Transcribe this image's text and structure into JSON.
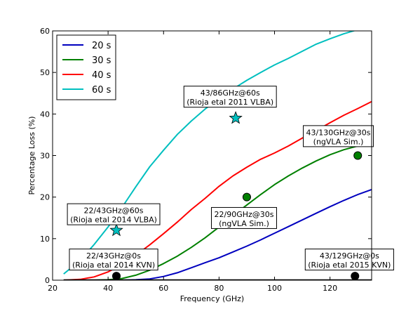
{
  "chart_data": {
    "type": "line",
    "title": "",
    "xlabel": "Frequency (GHz)",
    "ylabel": "Percentage Loss (%)",
    "xlim": [
      20,
      135
    ],
    "ylim": [
      0,
      60
    ],
    "xticks": [
      "20",
      "40",
      "60",
      "80",
      "100",
      "120"
    ],
    "yticks": [
      "0",
      "10",
      "20",
      "30",
      "40",
      "50",
      "60"
    ],
    "legend_position": "top-left",
    "grid": false,
    "series": [
      {
        "name": "20 s",
        "color": "#0000bf",
        "x": [
          24,
          35,
          45,
          50,
          55,
          60,
          65,
          70,
          75,
          80,
          85,
          90,
          95,
          100,
          105,
          110,
          115,
          120,
          125,
          130,
          135
        ],
        "y": [
          0,
          0,
          0,
          0.1,
          0.3,
          0.9,
          1.8,
          3.0,
          4.2,
          5.4,
          6.8,
          8.2,
          9.7,
          11.3,
          12.9,
          14.5,
          16.1,
          17.7,
          19.2,
          20.6,
          21.8
        ]
      },
      {
        "name": "30 s",
        "color": "#008000",
        "x": [
          24,
          35,
          40,
          45,
          50,
          55,
          60,
          65,
          70,
          75,
          80,
          85,
          90,
          95,
          100,
          105,
          110,
          115,
          120,
          125,
          130,
          135
        ],
        "y": [
          0,
          0,
          0.1,
          0.4,
          1.2,
          2.4,
          4.0,
          5.8,
          7.9,
          10.2,
          12.8,
          15.5,
          18.1,
          20.6,
          23.0,
          25.1,
          27.0,
          28.7,
          30.2,
          31.4,
          32.3,
          33.0
        ]
      },
      {
        "name": "40 s",
        "color": "#ff0000",
        "x": [
          24,
          30,
          35,
          40,
          45,
          50,
          55,
          60,
          65,
          70,
          75,
          80,
          85,
          90,
          95,
          100,
          105,
          110,
          115,
          120,
          125,
          130,
          135
        ],
        "y": [
          0,
          0.2,
          0.8,
          2.0,
          3.8,
          6.0,
          8.5,
          11.2,
          14.0,
          17.0,
          19.7,
          22.6,
          25.1,
          27.2,
          29.1,
          30.6,
          32.3,
          34.2,
          36.0,
          37.9,
          39.7,
          41.3,
          43.0
        ]
      },
      {
        "name": "60 s",
        "color": "#00bfbf",
        "x": [
          24,
          30,
          35,
          40,
          45,
          50,
          55,
          60,
          65,
          70,
          75,
          80,
          85,
          90,
          95,
          100,
          105,
          110,
          115,
          120,
          125,
          130,
          135
        ],
        "y": [
          1.5,
          4.8,
          8.6,
          12.8,
          17.5,
          22.5,
          27.3,
          31.3,
          35.1,
          38.3,
          41.2,
          43.7,
          46.0,
          48.1,
          50.0,
          51.8,
          53.4,
          55.1,
          56.8,
          58.1,
          59.3,
          60.3,
          61.2
        ]
      }
    ],
    "markers": [
      {
        "shape": "star",
        "color": "#00bfbf",
        "x": 86,
        "y": 39
      },
      {
        "shape": "star",
        "color": "#00bfbf",
        "x": 43,
        "y": 12
      },
      {
        "shape": "circle",
        "color": "#008000",
        "x": 90,
        "y": 20
      },
      {
        "shape": "circle",
        "color": "#008000",
        "x": 130,
        "y": 30
      },
      {
        "shape": "circle",
        "color": "#000000",
        "x": 43,
        "y": 1
      },
      {
        "shape": "circle",
        "color": "#000000",
        "x": 129,
        "y": 1
      },
      {
        "shape": "hline",
        "color": "#000000",
        "x": [
          24,
          135
        ],
        "y": 0
      }
    ],
    "annotations": [
      {
        "lines": [
          "43/86GHz@60s",
          "(Rioja etal 2011 VLBA)"
        ],
        "x": 84,
        "y": 44
      },
      {
        "lines": [
          "43/130GHz@30s",
          "(ngVLA Sim.)"
        ],
        "x": 123,
        "y": 34.5
      },
      {
        "lines": [
          "22/43GHz@60s",
          "(Rioja etal 2014 VLBA)"
        ],
        "x": 42,
        "y": 15.7
      },
      {
        "lines": [
          "22/90GHz@30s",
          "(ngVLA Sim.)"
        ],
        "x": 89,
        "y": 14.8
      },
      {
        "lines": [
          "22/43GHz@0s",
          "(Rioja etal 2014 KVN)"
        ],
        "x": 42,
        "y": 4.8
      },
      {
        "lines": [
          "43/129GHz@0s",
          "(Rioja etal 2015 KVN)"
        ],
        "x": 127,
        "y": 4.8
      }
    ]
  }
}
